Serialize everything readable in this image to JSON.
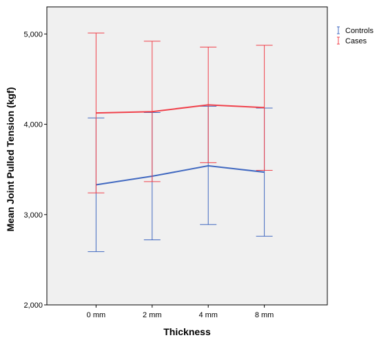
{
  "chart_data": {
    "type": "line",
    "xlabel": "Thickness",
    "ylabel": "Mean Joint Pulled Tension (kgf)",
    "categories": [
      "0 mm",
      "2 mm",
      "4 mm",
      "8 mm"
    ],
    "ylim": [
      2000,
      5300
    ],
    "yticks": [
      2000,
      3000,
      4000,
      5000
    ],
    "ytick_labels": [
      "2,000",
      "3,000",
      "4,000",
      "5,000"
    ],
    "grid": false,
    "legend_position": "top-right",
    "series": [
      {
        "name": "Controls",
        "color": "#4068c0",
        "values": [
          3330,
          3425,
          3540,
          3470
        ],
        "error_low": [
          2590,
          2720,
          2890,
          2760
        ],
        "error_high": [
          4070,
          4130,
          4200,
          4180
        ]
      },
      {
        "name": "Cases",
        "color": "#f0404a",
        "values": [
          4125,
          4140,
          4215,
          4185
        ],
        "error_low": [
          3240,
          3365,
          3575,
          3490
        ],
        "error_high": [
          5010,
          4920,
          4855,
          4875
        ]
      }
    ]
  }
}
